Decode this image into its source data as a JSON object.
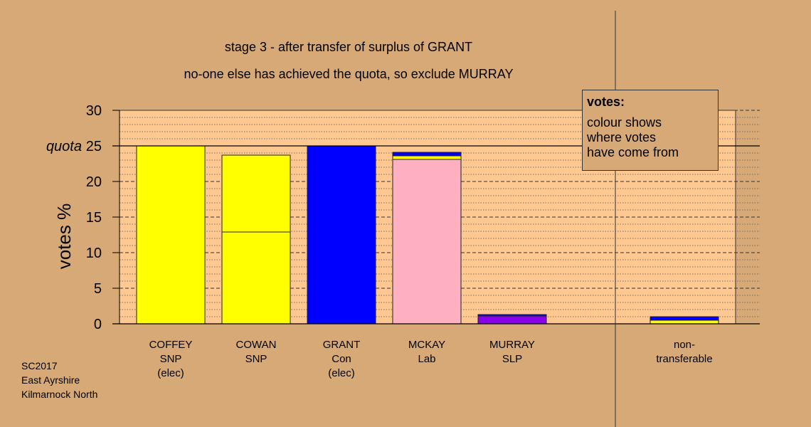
{
  "titles": [
    "stage 3 - after transfer of surplus of GRANT",
    "no-one else has achieved the quota, so exclude MURRAY"
  ],
  "footer": [
    "SC2017",
    "East Ayrshire",
    "Kilmarnock North"
  ],
  "legend": {
    "title": "votes:",
    "lines": [
      "colour shows",
      "where votes",
      "have come from"
    ]
  },
  "colors": {
    "SNP": "#ffff00",
    "Con": "#0000ff",
    "Lab": "#ffb0c0",
    "SLP": "#8800ee",
    "plot_bg": "#ffc890",
    "page_bg": "#d6a977"
  },
  "chart_data": {
    "type": "bar",
    "stacked": true,
    "ylabel": "votes %",
    "ylim": [
      0,
      30
    ],
    "yticks": [
      0,
      5,
      10,
      15,
      20,
      25,
      30
    ],
    "quota": 25,
    "quota_label": "quota",
    "categories": [
      {
        "lines": [
          "COFFEY",
          "SNP",
          "(elec)"
        ],
        "segments": [
          {
            "from": "SNP",
            "value": 25.0
          }
        ]
      },
      {
        "lines": [
          "COWAN",
          "SNP"
        ],
        "segments": [
          {
            "from": "SNP",
            "value": 12.9
          },
          {
            "from": "SNP",
            "value": 10.8
          }
        ]
      },
      {
        "lines": [
          "GRANT",
          "Con",
          "(elec)"
        ],
        "segments": [
          {
            "from": "Con",
            "value": 25.0
          }
        ]
      },
      {
        "lines": [
          "MCKAY",
          "Lab"
        ],
        "segments": [
          {
            "from": "Lab",
            "value": 23.1
          },
          {
            "from": "SNP",
            "value": 0.5
          },
          {
            "from": "Con",
            "value": 0.5
          }
        ]
      },
      {
        "lines": [
          "MURRAY",
          "SLP"
        ],
        "segments": [
          {
            "from": "SLP",
            "value": 1.1
          },
          {
            "from": "Con",
            "value": 0.2
          }
        ]
      },
      {
        "lines": [
          "non-",
          "transferable"
        ],
        "segments": [
          {
            "from": "SNP",
            "value": 0.5
          },
          {
            "from": "Con",
            "value": 0.5
          }
        ]
      }
    ]
  }
}
